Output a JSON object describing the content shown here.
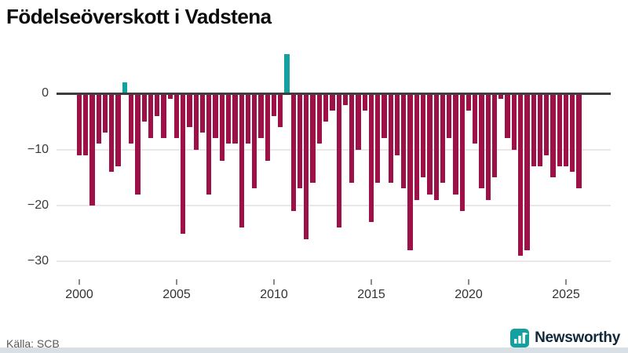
{
  "title": "Födelseöverskott i Vadstena",
  "source_note": "Källa: SCB",
  "branding": {
    "logo_text": "Newsworthy"
  },
  "colors": {
    "negative_bar": "#9e1048",
    "positive_bar": "#14a0a0",
    "zero_axis": "#3d3d3d",
    "gridline": "#e8e8e8",
    "axis_label": "#3a3a3a",
    "title_text": "#0b0b0b",
    "source_text": "#595959",
    "logo_teal": "#14a0a0",
    "logo_navy": "#10283a",
    "footer_strip": "#d8e0e5"
  },
  "chart_data": {
    "type": "bar",
    "title": "Födelseöverskott i Vadstena",
    "start_year": 2000,
    "periods_per_year": 3,
    "values": [
      -11,
      -11,
      -20,
      -9,
      -7,
      -14,
      -13,
      2,
      -9,
      -18,
      -5,
      -8,
      -4,
      -8,
      -1,
      -8,
      -25,
      -6,
      -10,
      -7,
      -18,
      -8,
      -12,
      -9,
      -9,
      -24,
      -9,
      -17,
      -8,
      -12,
      -4,
      -6,
      7,
      -21,
      -17,
      -26,
      -16,
      -9,
      -5,
      -3,
      -24,
      -2,
      -16,
      -10,
      -3,
      -23,
      -16,
      -8,
      -16,
      -11,
      -17,
      -28,
      -19,
      -15,
      -18,
      -19,
      -16,
      -8,
      -18,
      -21,
      -3,
      -9,
      -17,
      -19,
      -15,
      -1,
      -8,
      -10,
      -29,
      -28,
      -13,
      -13,
      -11,
      -15,
      -13,
      -13,
      -14,
      -17
    ],
    "x_ticks": [
      2000,
      2005,
      2010,
      2015,
      2020,
      2025
    ],
    "x_tick_labels": [
      "2000",
      "2005",
      "2010",
      "2015",
      "2020",
      "2025"
    ],
    "y_ticks": [
      0,
      -10,
      -20,
      -30
    ],
    "y_tick_labels": [
      "0",
      "−10",
      "−20",
      "−30"
    ],
    "ylim": [
      -32,
      8
    ],
    "grid": "horizontal gridlines at -10, -20, -30; dark zero axis line",
    "legend": "none"
  }
}
